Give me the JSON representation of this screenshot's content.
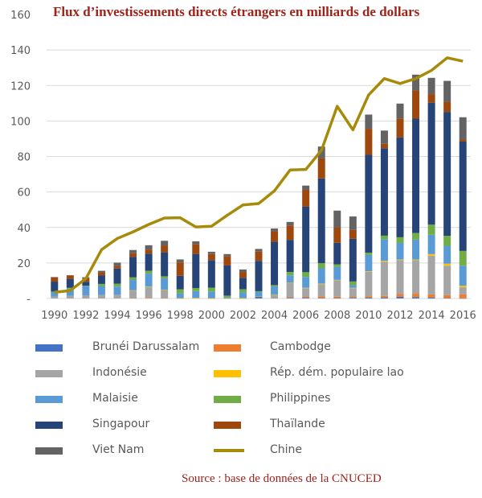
{
  "chart_data": {
    "type": "bar",
    "stacked": true,
    "title": "Flux d’investissements directs étrangers en milliards de dollars",
    "xlabel": "",
    "ylabel": "",
    "ylim": [
      0,
      160
    ],
    "yticks": [
      0,
      20,
      40,
      60,
      80,
      100,
      120,
      140,
      160
    ],
    "ytick_labels": [
      "-",
      "20",
      "40",
      "60",
      "80",
      "100",
      "120",
      "140",
      "160"
    ],
    "x": [
      1990,
      1991,
      1992,
      1993,
      1994,
      1995,
      1996,
      1997,
      1998,
      1999,
      2000,
      2001,
      2002,
      2003,
      2004,
      2005,
      2006,
      2007,
      2008,
      2009,
      2010,
      2011,
      2012,
      2013,
      2014,
      2015,
      2016
    ],
    "xtick_labels": [
      "1990",
      "1992",
      "1994",
      "1996",
      "1998",
      "2000",
      "2002",
      "2004",
      "2006",
      "2008",
      "2010",
      "2012",
      "2014",
      "2016"
    ],
    "grid": true,
    "legend_position": "bottom",
    "series": [
      {
        "name": "Brunéi Darussalam",
        "kind": "bar",
        "color": "#4472c4",
        "values": [
          0,
          0,
          0,
          0,
          0,
          0,
          0,
          0,
          0,
          0,
          0,
          0,
          0,
          1.0,
          0.2,
          0.3,
          0.4,
          0.3,
          0.2,
          0.4,
          0.5,
          0.6,
          0.9,
          0.8,
          0.6,
          0.2,
          0.1
        ]
      },
      {
        "name": "Cambodge",
        "kind": "bar",
        "color": "#ed7d31",
        "values": [
          0,
          0,
          0,
          0,
          0,
          0.2,
          0.3,
          0.2,
          0.1,
          0.2,
          0.1,
          0.1,
          0.1,
          0.1,
          0.1,
          0.4,
          0.5,
          0.9,
          0.8,
          0.5,
          0.8,
          0.9,
          1.6,
          1.9,
          1.7,
          1.7,
          2.3
        ]
      },
      {
        "name": "Indonésie",
        "kind": "bar",
        "color": "#a5a5a5",
        "values": [
          1.1,
          1.5,
          1.8,
          2.0,
          2.1,
          4.3,
          6.2,
          4.7,
          0,
          0,
          0,
          0,
          0.1,
          0,
          1.9,
          8.3,
          4.9,
          6.9,
          9.3,
          4.9,
          13.8,
          19.2,
          19.1,
          18.8,
          21.8,
          16.6,
          3.9
        ]
      },
      {
        "name": "Rép. dém. populaire lao",
        "kind": "bar",
        "color": "#ffc000",
        "values": [
          0,
          0,
          0,
          0,
          0,
          0.1,
          0.2,
          0.1,
          0.1,
          0.1,
          0.03,
          0.02,
          0.03,
          0.02,
          0.02,
          0.03,
          0.2,
          0.3,
          0.2,
          0.2,
          0.3,
          0.5,
          0.3,
          0.4,
          0.9,
          1.1,
          0.9
        ]
      },
      {
        "name": "Malaisie",
        "kind": "bar",
        "color": "#5b9bd5",
        "values": [
          2.3,
          4.0,
          5.2,
          5.0,
          4.6,
          5.8,
          7.3,
          6.3,
          2.7,
          3.9,
          3.8,
          0.6,
          3.2,
          2.5,
          4.6,
          4.0,
          6.1,
          8.6,
          7.2,
          1.5,
          9.1,
          12.2,
          9.4,
          11.3,
          10.9,
          10.1,
          11.3
        ]
      },
      {
        "name": "Philippines",
        "kind": "bar",
        "color": "#70ad47",
        "values": [
          0.5,
          0.5,
          0.2,
          1.2,
          1.6,
          1.5,
          1.6,
          1.2,
          2.3,
          1.7,
          2.2,
          0.9,
          1.8,
          0.5,
          0.7,
          1.9,
          2.7,
          2.9,
          1.5,
          2.1,
          1.3,
          2.0,
          3.2,
          3.7,
          5.7,
          5.6,
          8.3
        ]
      },
      {
        "name": "Singapour",
        "kind": "bar",
        "color": "#264478",
        "values": [
          5.6,
          4.9,
          2.2,
          4.7,
          8.6,
          11.5,
          9.7,
          13.5,
          7.6,
          19.2,
          15.5,
          17.0,
          6.4,
          17.1,
          24.4,
          18.1,
          36.9,
          47.7,
          12.2,
          24.0,
          55.1,
          49.2,
          56.2,
          64.4,
          68.7,
          69.8,
          61.6
        ]
      },
      {
        "name": "Thaïlande",
        "kind": "bar",
        "color": "#9e480e",
        "values": [
          2.4,
          2.0,
          2.1,
          1.8,
          1.4,
          2.1,
          2.3,
          3.9,
          7.5,
          5.6,
          3.4,
          5.1,
          3.3,
          5.2,
          5.9,
          8.1,
          9.5,
          11.3,
          8.5,
          5.0,
          14.7,
          2.5,
          10.7,
          15.9,
          4.8,
          5.7,
          1.1
        ]
      },
      {
        "name": "Viet Nam",
        "kind": "bar",
        "color": "#636363",
        "values": [
          0.2,
          0.2,
          0.5,
          0.9,
          1.9,
          1.8,
          2.4,
          2.6,
          1.7,
          1.5,
          1.3,
          1.3,
          1.4,
          1.5,
          1.6,
          2.0,
          2.4,
          6.7,
          9.6,
          7.6,
          8.0,
          7.5,
          8.4,
          8.9,
          9.2,
          11.8,
          12.6
        ]
      },
      {
        "name": "Chine",
        "kind": "line",
        "color": "#a88a0a",
        "values": [
          3.5,
          4.4,
          11.2,
          27.5,
          33.8,
          37.5,
          41.7,
          45.3,
          45.5,
          40.3,
          40.7,
          46.9,
          52.7,
          53.5,
          60.6,
          72.4,
          72.7,
          83.5,
          108.3,
          95.0,
          114.7,
          123.9,
          121.1,
          123.9,
          128.5,
          135.6,
          133.7
        ]
      }
    ]
  },
  "legend": {
    "items": [
      {
        "label": "Brunéi Darussalam",
        "color": "#4472c4",
        "type": "swatch"
      },
      {
        "label": "Cambodge",
        "color": "#ed7d31",
        "type": "swatch"
      },
      {
        "label": "Indonésie",
        "color": "#a5a5a5",
        "type": "swatch"
      },
      {
        "label": "Rép. dém. populaire lao",
        "color": "#ffc000",
        "type": "swatch"
      },
      {
        "label": "Malaisie",
        "color": "#5b9bd5",
        "type": "swatch"
      },
      {
        "label": "Philippines",
        "color": "#70ad47",
        "type": "swatch"
      },
      {
        "label": "Singapour",
        "color": "#264478",
        "type": "swatch"
      },
      {
        "label": "Thaïlande",
        "color": "#9e480e",
        "type": "swatch"
      },
      {
        "label": "Viet Nam",
        "color": "#636363",
        "type": "swatch"
      },
      {
        "label": "Chine",
        "color": "#a88a0a",
        "type": "line"
      }
    ]
  },
  "source": "Source : base de données de la CNUCED"
}
